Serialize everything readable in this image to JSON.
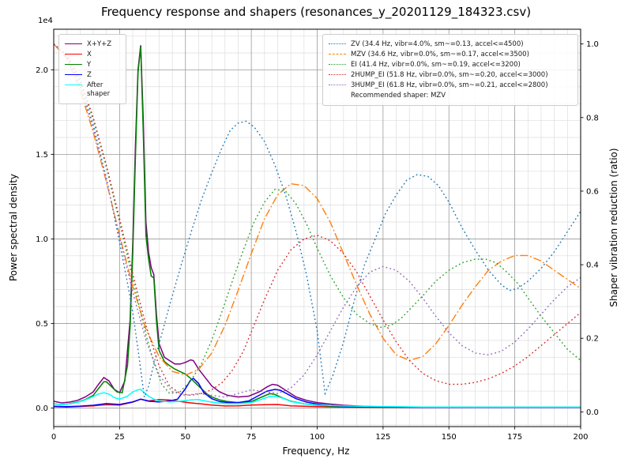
{
  "chart_data": {
    "type": "line",
    "title": "Frequency response and shapers (resonances_y_20201129_184323.csv)",
    "xlabel": "Frequency, Hz",
    "ylabel_left": "Power spectral density",
    "ylabel_right": "Shaper vibration reduction (ratio)",
    "offset_text": "1e4",
    "xlim": [
      0,
      200
    ],
    "ylim_left": [
      -1100,
      22400
    ],
    "ylim_right": [
      -0.04,
      1.04
    ],
    "xticks": [
      0,
      25,
      50,
      75,
      100,
      125,
      150,
      175,
      200
    ],
    "yticks_left": {
      "values": [
        0,
        5000,
        10000,
        15000,
        20000
      ],
      "labels": [
        "0.0",
        "0.5",
        "1.0",
        "1.5",
        "2.0"
      ]
    },
    "yticks_right": {
      "values": [
        0,
        0.2,
        0.4,
        0.6,
        0.8,
        1.0
      ],
      "labels": [
        "0.0",
        "0.2",
        "0.4",
        "0.6",
        "0.8",
        "1.0"
      ]
    },
    "grid": {
      "on": true,
      "major_color": "#9a9a9a",
      "minor_color": "#dddddd",
      "x_minor_step": 5,
      "y_minor_step": 1000
    },
    "recommended": "Recommended shaper: MZV",
    "psd_series": [
      {
        "name": "X+Y+Z",
        "color": "#800080",
        "axis": "left",
        "style": "solid",
        "x": [
          0,
          3,
          6,
          9,
          12,
          15,
          17,
          19,
          21,
          23,
          25,
          27,
          29,
          30,
          31,
          32,
          33,
          34,
          35,
          36,
          37,
          38,
          39,
          40,
          42,
          44,
          46,
          48,
          50,
          52,
          53,
          55,
          57,
          60,
          63,
          66,
          70,
          74,
          78,
          81,
          83,
          85,
          88,
          92,
          96,
          100,
          105,
          110,
          115,
          120,
          130,
          140,
          160,
          180,
          200
        ],
        "y": [
          400,
          300,
          350,
          450,
          650,
          950,
          1400,
          1800,
          1600,
          1100,
          900,
          1600,
          5200,
          9800,
          15500,
          20000,
          21450,
          17000,
          11000,
          9200,
          8300,
          7900,
          5500,
          3800,
          3000,
          2800,
          2600,
          2600,
          2700,
          2850,
          2800,
          2300,
          1900,
          1300,
          950,
          750,
          650,
          700,
          950,
          1250,
          1400,
          1350,
          1050,
          650,
          450,
          320,
          230,
          160,
          120,
          90,
          60,
          50,
          40,
          40,
          40
        ]
      },
      {
        "name": "X",
        "color": "#ff0000",
        "axis": "left",
        "style": "solid",
        "x": [
          0,
          5,
          10,
          15,
          20,
          25,
          30,
          33,
          36,
          40,
          44,
          48,
          52,
          56,
          60,
          65,
          70,
          75,
          80,
          85,
          90,
          100,
          110,
          120,
          140,
          160,
          180,
          200
        ],
        "y": [
          80,
          60,
          90,
          130,
          200,
          170,
          350,
          520,
          420,
          500,
          470,
          380,
          300,
          240,
          170,
          120,
          130,
          170,
          200,
          210,
          130,
          80,
          50,
          40,
          30,
          30,
          30,
          30
        ]
      },
      {
        "name": "Y",
        "color": "#008000",
        "axis": "left",
        "style": "solid",
        "x": [
          0,
          3,
          6,
          9,
          12,
          15,
          17,
          19,
          20,
          22,
          24,
          26,
          28,
          29,
          30,
          31,
          32,
          33,
          34,
          35,
          36,
          37,
          38,
          39,
          40,
          42,
          44,
          46,
          48,
          50,
          52,
          54,
          56,
          58,
          60,
          63,
          66,
          70,
          75,
          79,
          82,
          84,
          86,
          90,
          95,
          100,
          105,
          110,
          120,
          140,
          160,
          180,
          200
        ],
        "y": [
          250,
          200,
          250,
          350,
          500,
          750,
          1150,
          1550,
          1550,
          1250,
          950,
          900,
          2500,
          4800,
          9200,
          14800,
          19800,
          21400,
          16200,
          10200,
          8800,
          7800,
          7700,
          5100,
          3400,
          2750,
          2500,
          2300,
          2150,
          2000,
          1750,
          1450,
          1150,
          850,
          650,
          480,
          380,
          320,
          380,
          650,
          850,
          800,
          650,
          400,
          250,
          160,
          110,
          80,
          50,
          40,
          40,
          40,
          40
        ]
      },
      {
        "name": "Z",
        "color": "#0000ff",
        "axis": "left",
        "style": "solid",
        "x": [
          0,
          5,
          10,
          15,
          20,
          25,
          30,
          33,
          36,
          40,
          44,
          47,
          50,
          52,
          53,
          55,
          57,
          60,
          63,
          66,
          70,
          74,
          78,
          81,
          84,
          86,
          89,
          92,
          96,
          100,
          105,
          110,
          120,
          140,
          160,
          180,
          200
        ],
        "y": [
          100,
          80,
          110,
          160,
          260,
          210,
          360,
          520,
          400,
          360,
          420,
          520,
          1150,
          1650,
          1750,
          1450,
          900,
          550,
          380,
          320,
          320,
          420,
          750,
          1000,
          1100,
          1050,
          800,
          550,
          350,
          230,
          150,
          100,
          60,
          40,
          40,
          40,
          40
        ]
      },
      {
        "name": "After shaper",
        "color": "#00ffff",
        "axis": "left",
        "style": "solid",
        "x": [
          0,
          3,
          6,
          9,
          12,
          15,
          17,
          19,
          21,
          23,
          25,
          28,
          30,
          32,
          33,
          34,
          36,
          38,
          40,
          44,
          48,
          52,
          55,
          58,
          62,
          66,
          70,
          75,
          79,
          82,
          84,
          87,
          90,
          95,
          100,
          110,
          120,
          140,
          160,
          180,
          200
        ],
        "y": [
          250,
          200,
          240,
          330,
          480,
          680,
          830,
          900,
          820,
          620,
          520,
          700,
          950,
          1080,
          1100,
          950,
          700,
          520,
          420,
          360,
          400,
          480,
          500,
          400,
          300,
          260,
          260,
          320,
          520,
          680,
          700,
          580,
          380,
          250,
          180,
          120,
          90,
          60,
          50,
          50,
          50
        ]
      }
    ],
    "shaper_series": [
      {
        "name": "ZV",
        "label": "ZV (34.4 Hz, vibr=4.0%, sm~=0.13, accel<=4500)",
        "color": "#1f77b4",
        "axis": "right",
        "style": "dotted",
        "x": [
          0,
          5,
          10,
          15,
          20,
          25,
          28,
          30,
          32,
          34.4,
          36,
          38,
          40,
          44,
          48,
          52,
          56,
          60,
          64,
          67,
          70,
          73,
          76,
          80,
          84,
          88,
          92,
          96,
          100,
          103,
          106,
          110,
          114,
          118,
          122,
          126,
          130,
          134,
          138,
          142,
          146,
          150,
          155,
          160,
          165,
          170,
          173,
          176,
          180,
          185,
          190,
          195,
          200
        ],
        "y": [
          1.0,
          0.965,
          0.89,
          0.78,
          0.635,
          0.46,
          0.35,
          0.27,
          0.17,
          0.04,
          0.07,
          0.13,
          0.185,
          0.29,
          0.39,
          0.485,
          0.575,
          0.65,
          0.72,
          0.765,
          0.785,
          0.79,
          0.775,
          0.735,
          0.67,
          0.59,
          0.49,
          0.37,
          0.22,
          0.05,
          0.1,
          0.19,
          0.3,
          0.4,
          0.47,
          0.54,
          0.59,
          0.63,
          0.645,
          0.64,
          0.615,
          0.57,
          0.5,
          0.44,
          0.385,
          0.345,
          0.33,
          0.335,
          0.355,
          0.39,
          0.435,
          0.49,
          0.545
        ]
      },
      {
        "name": "MZV",
        "label": "MZV (34.6 Hz, vibr=0.0%, sm~=0.17, accel<=3500)",
        "color": "#ff7f0e",
        "axis": "right",
        "style": "dashdot",
        "x": [
          0,
          5,
          10,
          15,
          20,
          25,
          30,
          35,
          40,
          45,
          50,
          55,
          60,
          65,
          70,
          75,
          80,
          85,
          90,
          95,
          100,
          105,
          110,
          115,
          120,
          125,
          130,
          135,
          140,
          145,
          150,
          155,
          160,
          165,
          170,
          175,
          180,
          185,
          190,
          195,
          200
        ],
        "y": [
          1.0,
          0.96,
          0.875,
          0.76,
          0.625,
          0.48,
          0.34,
          0.225,
          0.15,
          0.11,
          0.1,
          0.115,
          0.16,
          0.235,
          0.33,
          0.43,
          0.525,
          0.59,
          0.62,
          0.615,
          0.58,
          0.515,
          0.43,
          0.345,
          0.265,
          0.2,
          0.155,
          0.14,
          0.15,
          0.185,
          0.235,
          0.29,
          0.34,
          0.385,
          0.41,
          0.425,
          0.425,
          0.41,
          0.385,
          0.36,
          0.335
        ]
      },
      {
        "name": "EI",
        "label": "EI (41.4 Hz, vibr=0.0%, sm~=0.19, accel<=3200)",
        "color": "#2ca02c",
        "axis": "right",
        "style": "dotted",
        "x": [
          0,
          5,
          10,
          15,
          20,
          25,
          30,
          35,
          38,
          41,
          44,
          48,
          52,
          56,
          60,
          64,
          68,
          72,
          76,
          80,
          84,
          88,
          92,
          96,
          100,
          105,
          110,
          115,
          120,
          124,
          128,
          132,
          136,
          140,
          145,
          150,
          155,
          160,
          164,
          168,
          172,
          176,
          180,
          185,
          190,
          195,
          200
        ],
        "y": [
          1.0,
          0.97,
          0.9,
          0.795,
          0.665,
          0.515,
          0.36,
          0.21,
          0.135,
          0.075,
          0.05,
          0.055,
          0.085,
          0.13,
          0.195,
          0.275,
          0.36,
          0.44,
          0.515,
          0.57,
          0.605,
          0.6,
          0.565,
          0.51,
          0.445,
          0.37,
          0.31,
          0.265,
          0.24,
          0.23,
          0.235,
          0.255,
          0.285,
          0.315,
          0.355,
          0.385,
          0.405,
          0.415,
          0.415,
          0.405,
          0.38,
          0.35,
          0.31,
          0.26,
          0.215,
          0.17,
          0.14
        ]
      },
      {
        "name": "2HUMP_EI",
        "label": "2HUMP_EI (51.8 Hz, vibr=0.0%, sm~=0.20, accel<=3000)",
        "color": "#d62728",
        "axis": "right",
        "style": "dotted",
        "x": [
          0,
          5,
          10,
          15,
          20,
          25,
          30,
          35,
          40,
          44,
          48,
          52,
          56,
          60,
          64,
          68,
          72,
          76,
          80,
          85,
          90,
          95,
          100,
          105,
          110,
          115,
          120,
          125,
          130,
          135,
          140,
          145,
          150,
          155,
          160,
          165,
          170,
          175,
          180,
          185,
          190,
          195,
          200
        ],
        "y": [
          1.0,
          0.97,
          0.905,
          0.8,
          0.67,
          0.525,
          0.375,
          0.235,
          0.125,
          0.07,
          0.05,
          0.045,
          0.05,
          0.06,
          0.08,
          0.115,
          0.165,
          0.235,
          0.305,
          0.385,
          0.44,
          0.47,
          0.48,
          0.465,
          0.43,
          0.38,
          0.315,
          0.25,
          0.19,
          0.14,
          0.105,
          0.085,
          0.075,
          0.075,
          0.08,
          0.09,
          0.105,
          0.125,
          0.15,
          0.18,
          0.21,
          0.24,
          0.27
        ]
      },
      {
        "name": "3HUMP_EI",
        "label": "3HUMP_EI (61.8 Hz, vibr=0.0%, sm~=0.21, accel<=2800)",
        "color": "#9467bd",
        "axis": "right",
        "style": "dotted",
        "x": [
          0,
          5,
          10,
          15,
          20,
          25,
          30,
          35,
          40,
          45,
          50,
          55,
          60,
          65,
          70,
          75,
          80,
          85,
          90,
          95,
          100,
          105,
          110,
          115,
          120,
          125,
          130,
          135,
          140,
          145,
          150,
          155,
          160,
          165,
          170,
          175,
          180,
          185,
          190,
          195,
          200
        ],
        "y": [
          1.0,
          0.965,
          0.885,
          0.77,
          0.63,
          0.475,
          0.325,
          0.195,
          0.1,
          0.055,
          0.045,
          0.05,
          0.045,
          0.04,
          0.05,
          0.06,
          0.055,
          0.05,
          0.065,
          0.1,
          0.155,
          0.22,
          0.285,
          0.34,
          0.38,
          0.395,
          0.385,
          0.355,
          0.31,
          0.26,
          0.215,
          0.18,
          0.16,
          0.155,
          0.165,
          0.19,
          0.225,
          0.265,
          0.305,
          0.34,
          0.365
        ]
      }
    ]
  }
}
